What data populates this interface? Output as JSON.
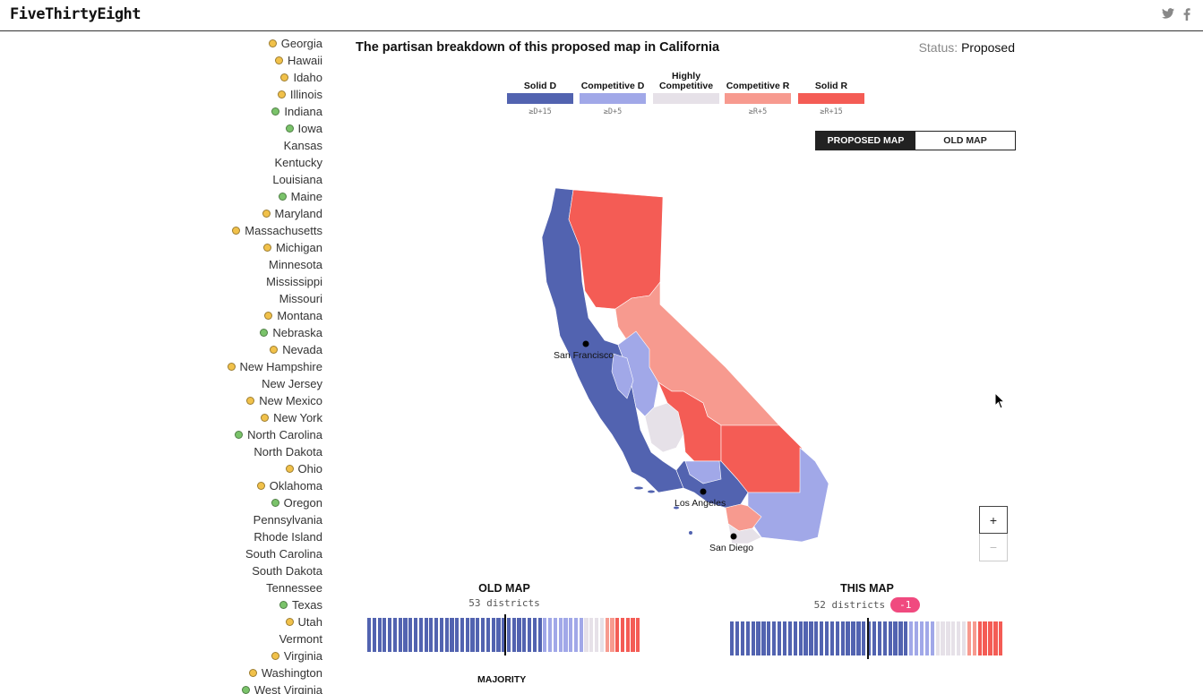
{
  "header": {
    "logo": "FiveThirtyEight",
    "social": [
      {
        "icon": "twitter-icon"
      },
      {
        "icon": "facebook-icon"
      }
    ]
  },
  "states": [
    {
      "name": "Georgia",
      "dot": "yellow"
    },
    {
      "name": "Hawaii",
      "dot": "yellow"
    },
    {
      "name": "Idaho",
      "dot": "yellow"
    },
    {
      "name": "Illinois",
      "dot": "yellow"
    },
    {
      "name": "Indiana",
      "dot": "green"
    },
    {
      "name": "Iowa",
      "dot": "green"
    },
    {
      "name": "Kansas",
      "dot": "none"
    },
    {
      "name": "Kentucky",
      "dot": "none"
    },
    {
      "name": "Louisiana",
      "dot": "none"
    },
    {
      "name": "Maine",
      "dot": "green"
    },
    {
      "name": "Maryland",
      "dot": "yellow"
    },
    {
      "name": "Massachusetts",
      "dot": "yellow"
    },
    {
      "name": "Michigan",
      "dot": "yellow"
    },
    {
      "name": "Minnesota",
      "dot": "none"
    },
    {
      "name": "Mississippi",
      "dot": "none"
    },
    {
      "name": "Missouri",
      "dot": "none"
    },
    {
      "name": "Montana",
      "dot": "yellow"
    },
    {
      "name": "Nebraska",
      "dot": "green"
    },
    {
      "name": "Nevada",
      "dot": "yellow"
    },
    {
      "name": "New Hampshire",
      "dot": "yellow"
    },
    {
      "name": "New Jersey",
      "dot": "none"
    },
    {
      "name": "New Mexico",
      "dot": "yellow"
    },
    {
      "name": "New York",
      "dot": "yellow"
    },
    {
      "name": "North Carolina",
      "dot": "green"
    },
    {
      "name": "North Dakota",
      "dot": "none"
    },
    {
      "name": "Ohio",
      "dot": "yellow"
    },
    {
      "name": "Oklahoma",
      "dot": "yellow"
    },
    {
      "name": "Oregon",
      "dot": "green"
    },
    {
      "name": "Pennsylvania",
      "dot": "none"
    },
    {
      "name": "Rhode Island",
      "dot": "none"
    },
    {
      "name": "South Carolina",
      "dot": "none"
    },
    {
      "name": "South Dakota",
      "dot": "none"
    },
    {
      "name": "Tennessee",
      "dot": "none"
    },
    {
      "name": "Texas",
      "dot": "green"
    },
    {
      "name": "Utah",
      "dot": "yellow"
    },
    {
      "name": "Vermont",
      "dot": "none"
    },
    {
      "name": "Virginia",
      "dot": "yellow"
    },
    {
      "name": "Washington",
      "dot": "yellow"
    },
    {
      "name": "West Virginia",
      "dot": "green"
    }
  ],
  "main": {
    "headline": "The partisan breakdown of this proposed map in California",
    "status_label": "Status:",
    "status_value": "Proposed"
  },
  "legend": [
    {
      "label": "Solid D",
      "sub": "≥D+15",
      "color": "#5263b0"
    },
    {
      "label": "Competitive D",
      "sub": "≥D+5",
      "color": "#a1a8e8"
    },
    {
      "label": "Highly Competitive",
      "sub": "",
      "color": "#e6e1e8"
    },
    {
      "label": "Competitive R",
      "sub": "≥R+5",
      "color": "#f79a8f"
    },
    {
      "label": "Solid R",
      "sub": "≥R+15",
      "color": "#f45c55"
    }
  ],
  "toggle": {
    "proposed_label": "PROPOSED MAP",
    "old_label": "OLD MAP"
  },
  "map": {
    "cities": [
      "San Francisco",
      "Los Angeles",
      "San Diego"
    ]
  },
  "zoom": {
    "in_label": "+",
    "out_label": "−"
  },
  "old_map": {
    "title": "OLD MAP",
    "districts_label": "53 districts",
    "counts": {
      "solid_d": 34,
      "competitive_d": 8,
      "highly_competitive": 4,
      "competitive_r": 2,
      "solid_r": 5
    }
  },
  "this_map": {
    "title": "THIS MAP",
    "districts_label": "52 districts",
    "diff": "-1",
    "counts": {
      "solid_d": 34,
      "competitive_d": 5,
      "highly_competitive": 6,
      "competitive_r": 2,
      "solid_r": 5
    }
  },
  "majority_label": "MAJORITY"
}
